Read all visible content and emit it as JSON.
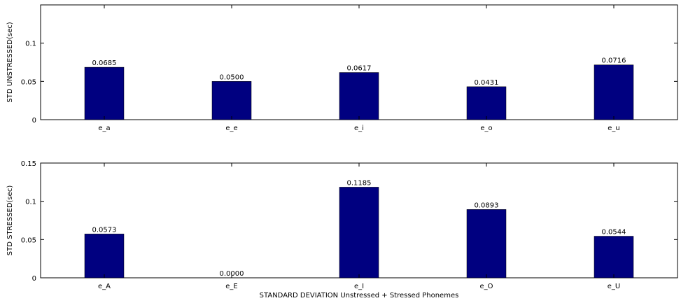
{
  "chart_data": [
    {
      "type": "bar",
      "ylabel": "STD UNSTRESSED(sec)",
      "xlabel": "",
      "categories": [
        "e_a",
        "e_e",
        "e_i",
        "e_o",
        "e_u"
      ],
      "values": [
        0.0685,
        0.05,
        0.0617,
        0.0431,
        0.0716
      ],
      "value_labels": [
        "0.0685",
        "0.0500",
        "0.0617",
        "0.0431",
        "0.0716"
      ],
      "ylim": [
        0,
        0.15
      ],
      "yticks": [
        0,
        0.05,
        0.1
      ],
      "ytick_labels": [
        "0",
        "0.05",
        "0.1"
      ],
      "bar_color": "#000080",
      "grid": false
    },
    {
      "type": "bar",
      "ylabel": "STD STRESSED(sec)",
      "xlabel": "STANDARD DEVIATION Unstressed + Stressed Phonemes",
      "categories": [
        "e_A",
        "e_E",
        "e_I",
        "e_O",
        "e_U"
      ],
      "values": [
        0.0573,
        0.0,
        0.1185,
        0.0893,
        0.0544
      ],
      "value_labels": [
        "0.0573",
        "0.0000",
        "0.1185",
        "0.0893",
        "0.0544"
      ],
      "ylim": [
        0,
        0.15
      ],
      "yticks": [
        0,
        0.05,
        0.1,
        0.15
      ],
      "ytick_labels": [
        "0",
        "0.05",
        "0.1",
        "0.15"
      ],
      "bar_color": "#000080",
      "grid": false
    }
  ]
}
